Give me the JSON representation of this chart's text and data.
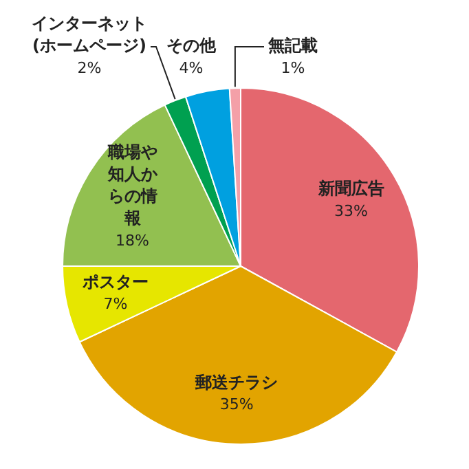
{
  "chart_data": {
    "type": "pie",
    "categories": [
      "新聞広告",
      "郵送チラシ",
      "ポスター",
      "職場や知人からの情報",
      "インターネット(ホームページ)",
      "その他",
      "無記載"
    ],
    "values": [
      33,
      35,
      7,
      18,
      2,
      4,
      1
    ],
    "value_labels": [
      "33%",
      "35%",
      "7%",
      "18%",
      "2%",
      "4%",
      "1%"
    ],
    "colors": [
      "#e4676e",
      "#e2a400",
      "#e6e600",
      "#92c050",
      "#00a050",
      "#00a0e0",
      "#f4a0a8"
    ],
    "legend": false
  }
}
